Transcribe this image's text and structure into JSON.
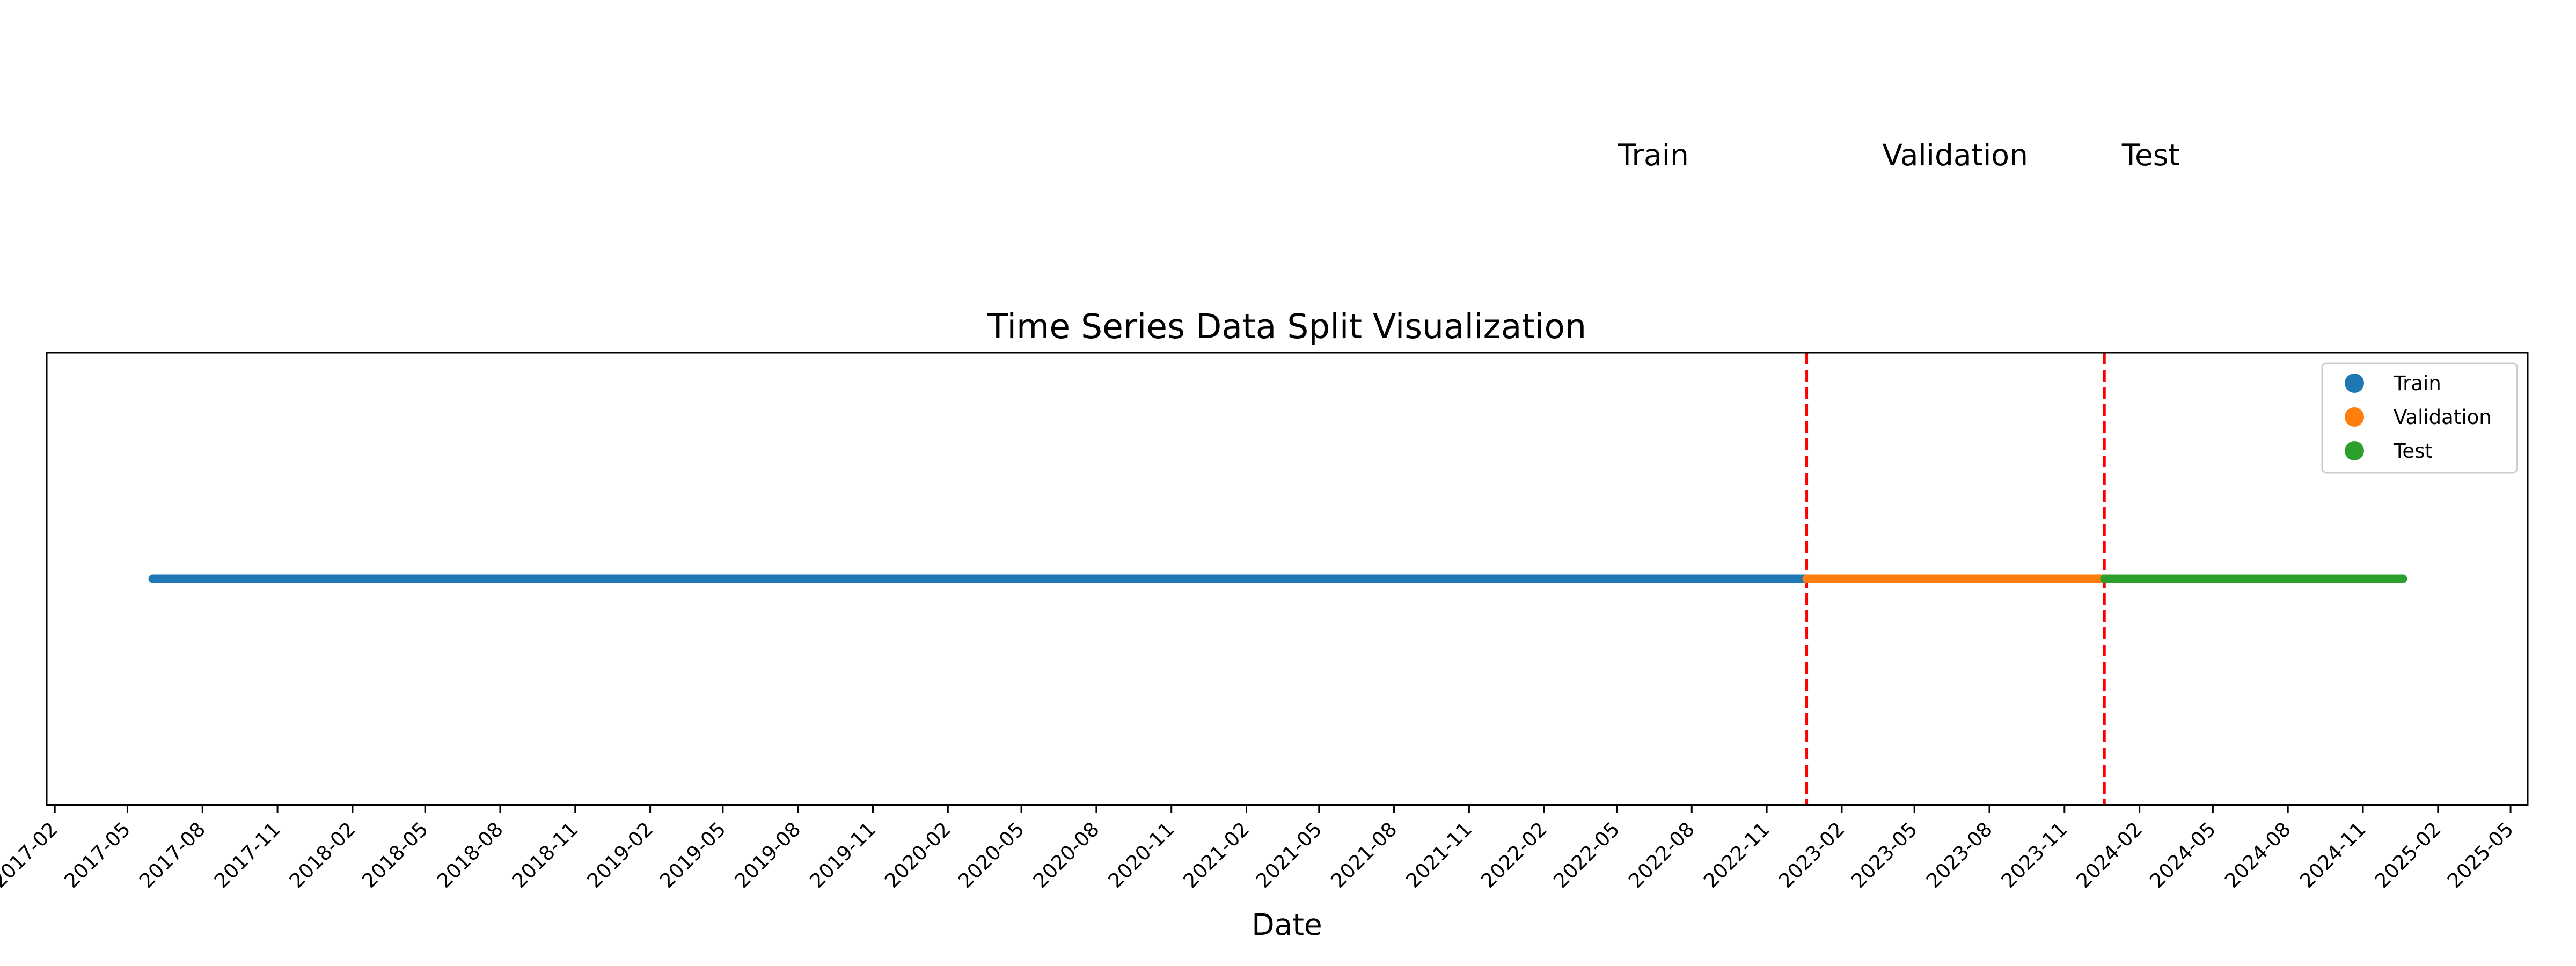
{
  "chart_data": {
    "type": "line",
    "title": "Time Series Data Split Visualization",
    "xlabel": "Date",
    "ylabel": "",
    "x_axis_kind": "date",
    "xlim": [
      "2017-01-22",
      "2025-05-22"
    ],
    "ylim": [
      0,
      2
    ],
    "grid": false,
    "legend_placement": "top-right",
    "x_ticks": [
      "2017-02",
      "2017-05",
      "2017-08",
      "2017-11",
      "2018-02",
      "2018-05",
      "2018-08",
      "2018-11",
      "2019-02",
      "2019-05",
      "2019-08",
      "2019-11",
      "2020-02",
      "2020-05",
      "2020-08",
      "2020-11",
      "2021-02",
      "2021-05",
      "2021-08",
      "2021-11",
      "2022-02",
      "2022-05",
      "2022-08",
      "2022-11",
      "2023-02",
      "2023-05",
      "2023-08",
      "2023-11",
      "2024-02",
      "2024-05",
      "2024-08",
      "2024-11",
      "2025-02",
      "2025-05"
    ],
    "series": [
      {
        "name": "Train",
        "color": "#1f77b4",
        "x_start": "2017-06-01",
        "x_end": "2022-12-20",
        "y": 1
      },
      {
        "name": "Validation",
        "color": "#ff7f0e",
        "x_start": "2022-12-20",
        "x_end": "2023-12-20",
        "y": 1
      },
      {
        "name": "Test",
        "color": "#2ca02c",
        "x_start": "2023-12-20",
        "x_end": "2024-12-20",
        "y": 1
      }
    ],
    "split_lines": [
      {
        "x": "2022-12-20",
        "color": "#ff0000",
        "style": "dashed"
      },
      {
        "x": "2023-12-20",
        "color": "#ff0000",
        "style": "dashed"
      }
    ],
    "annotations": [
      {
        "text": "Train",
        "x": "2022-06-15"
      },
      {
        "text": "Validation",
        "x": "2023-06-20"
      },
      {
        "text": "Test",
        "x": "2024-02-15"
      }
    ]
  }
}
